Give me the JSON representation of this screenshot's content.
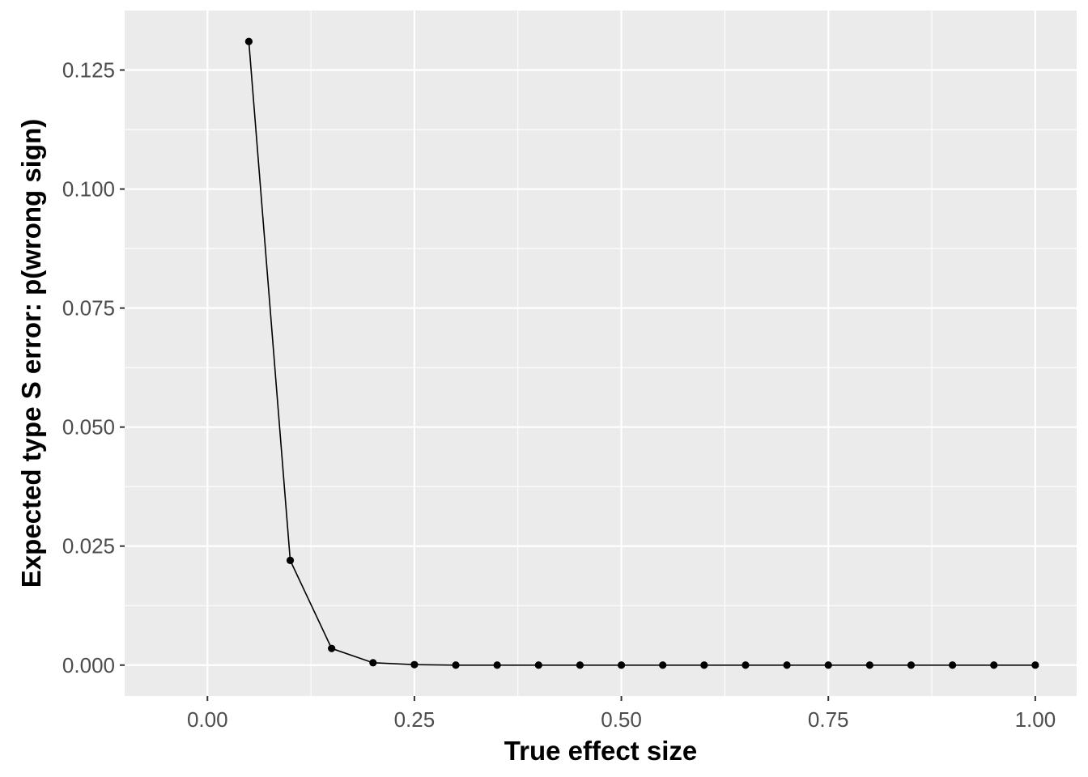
{
  "chart_data": {
    "type": "line",
    "title": "",
    "xlabel": "True effect size",
    "ylabel": "Expected type S error: p(wrong sign)",
    "xlim": [
      -0.1,
      1.05
    ],
    "ylim": [
      -0.0065,
      0.1375
    ],
    "x_ticks": [
      0.0,
      0.25,
      0.5,
      0.75,
      1.0
    ],
    "x_tick_labels": [
      "0.00",
      "0.25",
      "0.50",
      "0.75",
      "1.00"
    ],
    "y_ticks": [
      0.0,
      0.025,
      0.05,
      0.075,
      0.1,
      0.125
    ],
    "y_tick_labels": [
      "0.000",
      "0.025",
      "0.050",
      "0.075",
      "0.100",
      "0.125"
    ],
    "grid": true,
    "legend": "none",
    "colors": {
      "panel_background": "#ebebeb",
      "grid_major": "#ffffff",
      "series_line": "#000000",
      "series_point": "#000000",
      "tick_label": "#4d4d4d",
      "axis_title": "#000000"
    },
    "series": [
      {
        "x": [
          0.05,
          0.1,
          0.15,
          0.2,
          0.25,
          0.3,
          0.35,
          0.4,
          0.45,
          0.5,
          0.55,
          0.6,
          0.65,
          0.7,
          0.75,
          0.8,
          0.85,
          0.9,
          0.95,
          1.0
        ],
        "values": [
          0.131,
          0.022,
          0.0035,
          0.0005,
          0.0001,
          0,
          0,
          0,
          0,
          0,
          0,
          0,
          0,
          0,
          0,
          0,
          0,
          0,
          0,
          0
        ]
      }
    ]
  }
}
